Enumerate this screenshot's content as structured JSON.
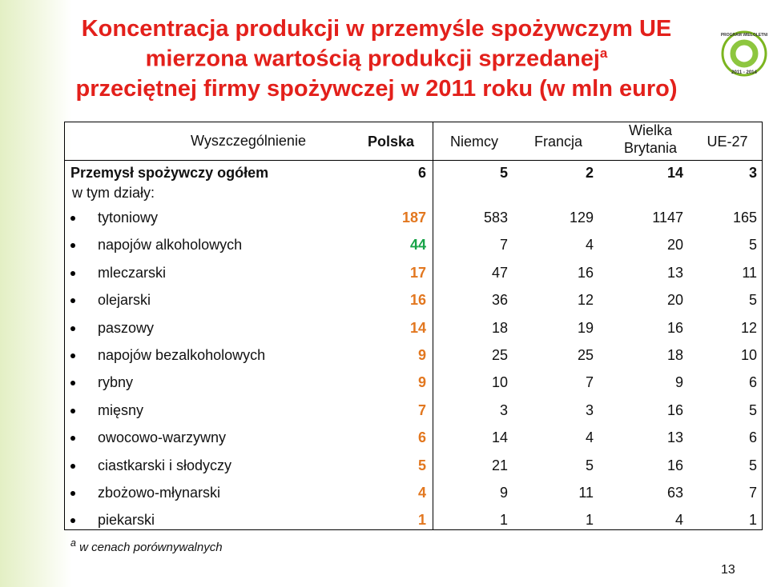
{
  "title": {
    "line1": "Koncentracja produkcji w przemyśle spożywczym UE",
    "line2": "mierzona wartością produkcji sprzedanej",
    "line2_sup": "a",
    "line3": "przeciętnej firmy spożywczej w 2011 roku (w mln euro)"
  },
  "logo": {
    "top": "PROGRAM WIELOLETNI",
    "bottom": "2011 - 2014"
  },
  "table": {
    "header": [
      "Wyszczególnienie",
      "Polska",
      "Niemcy",
      "Francja",
      "Wielka Brytania",
      "UE-27"
    ],
    "total": {
      "label": "Przemysł spożywczy ogółem",
      "values": [
        6,
        5,
        2,
        14,
        3
      ]
    },
    "subheader": "w tym działy:",
    "rows": [
      {
        "label": "tytoniowy",
        "values": [
          187,
          583,
          129,
          1147,
          165
        ],
        "color": "#e2771f"
      },
      {
        "label": "napojów alkoholowych",
        "values": [
          44,
          7,
          4,
          20,
          5
        ],
        "color": "#17a347"
      },
      {
        "label": "mleczarski",
        "values": [
          17,
          47,
          16,
          13,
          11
        ],
        "color": "#e2771f"
      },
      {
        "label": "olejarski",
        "values": [
          16,
          36,
          12,
          20,
          5
        ],
        "color": "#e2771f"
      },
      {
        "label": "paszowy",
        "values": [
          14,
          18,
          19,
          16,
          12
        ],
        "color": "#e2771f"
      },
      {
        "label": "napojów bezalkoholowych",
        "values": [
          9,
          25,
          25,
          18,
          10
        ],
        "color": "#e2771f"
      },
      {
        "label": "rybny",
        "values": [
          9,
          10,
          7,
          9,
          6
        ],
        "color": "#e2771f"
      },
      {
        "label": "mięsny",
        "values": [
          7,
          3,
          3,
          16,
          5
        ],
        "color": "#e2771f"
      },
      {
        "label": "owocowo-warzywny",
        "values": [
          6,
          14,
          4,
          13,
          6
        ],
        "color": "#e2771f"
      },
      {
        "label": "ciastkarski i słodyczy",
        "values": [
          5,
          21,
          5,
          16,
          5
        ],
        "color": "#e2771f"
      },
      {
        "label": "zbożowo-młynarski",
        "values": [
          4,
          9,
          11,
          63,
          7
        ],
        "color": "#e2771f"
      },
      {
        "label": "piekarski",
        "values": [
          1,
          1,
          1,
          4,
          1
        ],
        "color": "#e2771f"
      }
    ]
  },
  "footnote": {
    "mark": "a",
    "text": "w cenach porównywalnych"
  },
  "page_number": "13"
}
